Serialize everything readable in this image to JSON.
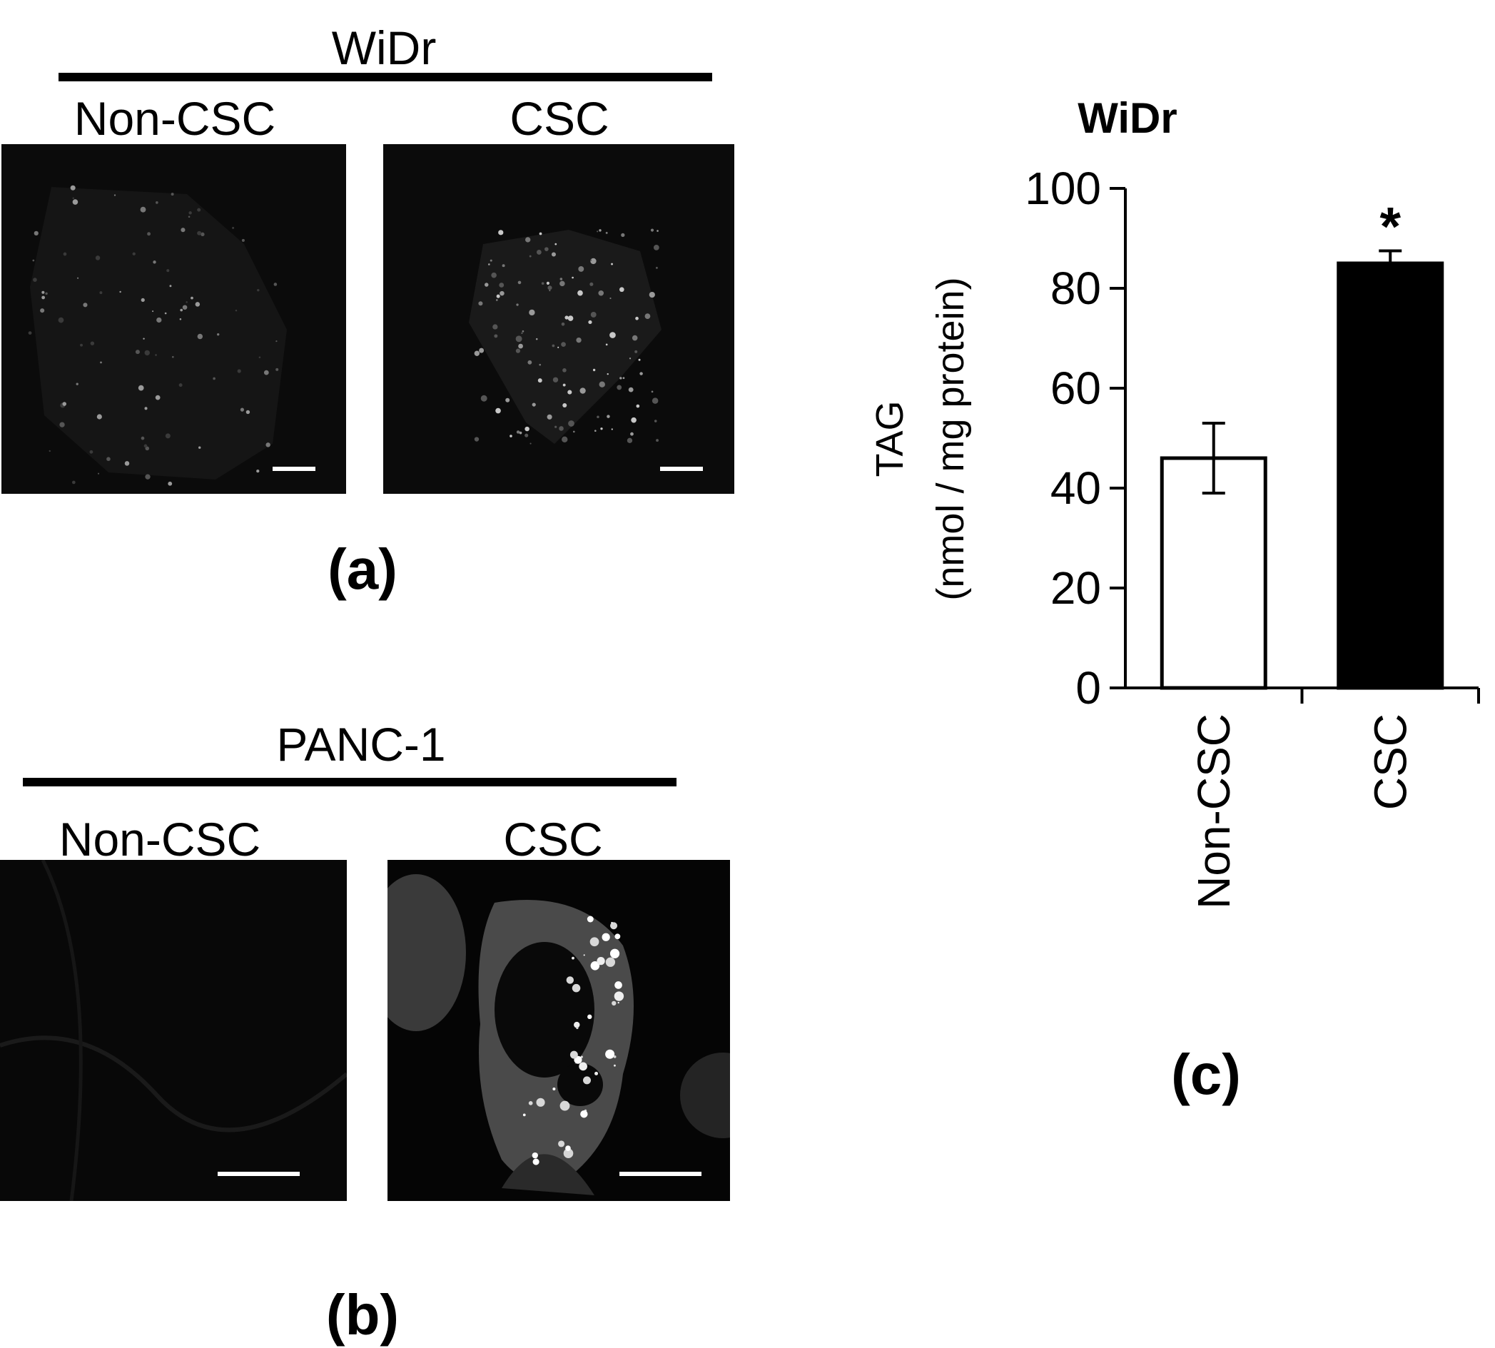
{
  "panel_a": {
    "group_title": "WiDr",
    "left_label": "Non-CSC",
    "right_label": "CSC",
    "panel_label": "(a)"
  },
  "panel_b": {
    "group_title": "PANC-1",
    "left_label": "Non-CSC",
    "right_label": "CSC",
    "panel_label": "(b)"
  },
  "panel_c": {
    "panel_label": "(c)"
  },
  "chart_data": {
    "type": "bar",
    "title": "WiDr",
    "ylabel_line1": "TAG",
    "ylabel_line2": "(nmol / mg protein)",
    "xlabel": "",
    "categories": [
      "Non-CSC",
      "CSC"
    ],
    "values": [
      46,
      85
    ],
    "errors": [
      7,
      2.5
    ],
    "bar_colors": [
      "#ffffff",
      "#000000"
    ],
    "significance": [
      "",
      "*"
    ],
    "ylim": [
      0,
      100
    ],
    "yticks": [
      0,
      20,
      40,
      60,
      80,
      100
    ],
    "grid": false
  }
}
